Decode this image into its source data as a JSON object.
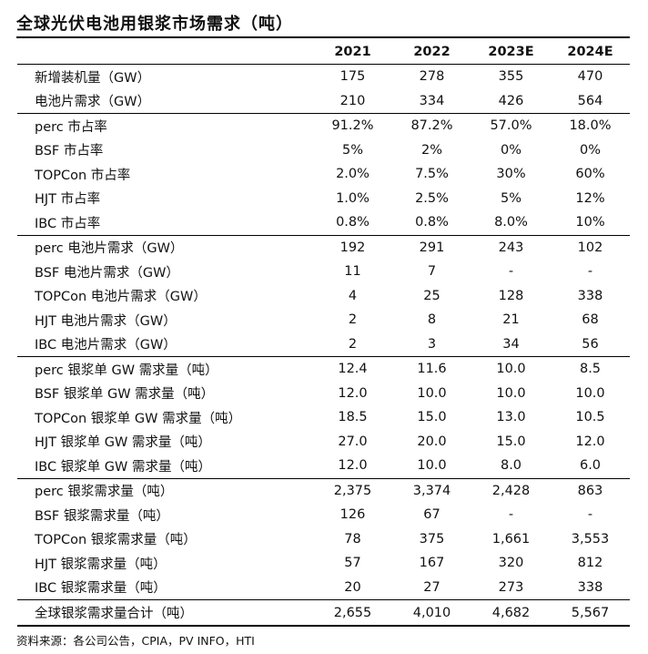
{
  "title": "全球光伏电池用银浆市场需求（吨）",
  "header": [
    "",
    "2021",
    "2022",
    "2023E",
    "2024E"
  ],
  "groups": [
    {
      "rows": [
        {
          "label": "新增装机量（GW）",
          "values": [
            "175",
            "278",
            "355",
            "470"
          ]
        },
        {
          "label": "电池片需求（GW）",
          "values": [
            "210",
            "334",
            "426",
            "564"
          ]
        }
      ]
    },
    {
      "rows": [
        {
          "label": "perc 市占率",
          "values": [
            "91.2%",
            "87.2%",
            "57.0%",
            "18.0%"
          ]
        },
        {
          "label": "BSF 市占率",
          "values": [
            "5%",
            "2%",
            "0%",
            "0%"
          ]
        },
        {
          "label": "TOPCon 市占率",
          "values": [
            "2.0%",
            "7.5%",
            "30%",
            "60%"
          ]
        },
        {
          "label": "HJT 市占率",
          "values": [
            "1.0%",
            "2.5%",
            "5%",
            "12%"
          ]
        },
        {
          "label": "IBC 市占率",
          "values": [
            "0.8%",
            "0.8%",
            "8.0%",
            "10%"
          ]
        }
      ]
    },
    {
      "rows": [
        {
          "label": "perc 电池片需求（GW）",
          "values": [
            "192",
            "291",
            "243",
            "102"
          ]
        },
        {
          "label": "BSF 电池片需求（GW）",
          "values": [
            "11",
            "7",
            "-",
            "-"
          ]
        },
        {
          "label": "TOPCon 电池片需求（GW）",
          "values": [
            "4",
            "25",
            "128",
            "338"
          ]
        },
        {
          "label": "HJT 电池片需求（GW）",
          "values": [
            "2",
            "8",
            "21",
            "68"
          ]
        },
        {
          "label": "IBC 电池片需求（GW）",
          "values": [
            "2",
            "3",
            "34",
            "56"
          ]
        }
      ]
    },
    {
      "rows": [
        {
          "label": "perc 银浆单 GW 需求量（吨）",
          "values": [
            "12.4",
            "11.6",
            "10.0",
            "8.5"
          ]
        },
        {
          "label": "BSF 银浆单 GW 需求量（吨）",
          "values": [
            "12.0",
            "10.0",
            "10.0",
            "10.0"
          ]
        },
        {
          "label": "TOPCon 银浆单 GW 需求量（吨）",
          "values": [
            "18.5",
            "15.0",
            "13.0",
            "10.5"
          ]
        },
        {
          "label": "HJT 银浆单 GW 需求量（吨）",
          "values": [
            "27.0",
            "20.0",
            "15.0",
            "12.0"
          ]
        },
        {
          "label": "IBC 银浆单 GW 需求量（吨）",
          "values": [
            "12.0",
            "10.0",
            "8.0",
            "6.0"
          ]
        }
      ]
    },
    {
      "rows": [
        {
          "label": "perc 银浆需求量（吨）",
          "values": [
            "2,375",
            "3,374",
            "2,428",
            "863"
          ]
        },
        {
          "label": "BSF 银浆需求量（吨）",
          "values": [
            "126",
            "67",
            "-",
            "-"
          ]
        },
        {
          "label": "TOPCon 银浆需求量（吨）",
          "values": [
            "78",
            "375",
            "1,661",
            "3,553"
          ]
        },
        {
          "label": "HJT 银浆需求量（吨）",
          "values": [
            "57",
            "167",
            "320",
            "812"
          ]
        },
        {
          "label": "IBC 银浆需求量（吨）",
          "values": [
            "20",
            "27",
            "273",
            "338"
          ]
        }
      ]
    },
    {
      "total": true,
      "rows": [
        {
          "label": "全球银浆需求量合计（吨）",
          "values": [
            "2,655",
            "4,010",
            "4,682",
            "5,567"
          ]
        }
      ]
    }
  ],
  "source": "资料来源：各公司公告，CPIA，PV INFO，HTI"
}
